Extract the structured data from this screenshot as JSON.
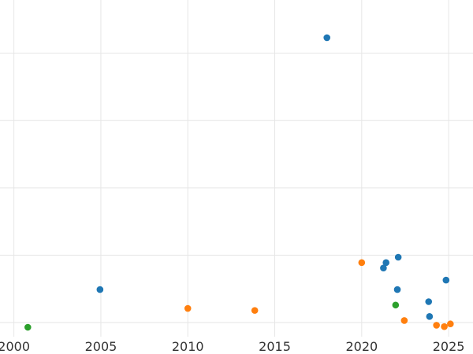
{
  "chart_data": {
    "type": "scatter",
    "xlim": [
      1999.2,
      2026.4
    ],
    "ylim": [
      0,
      10
    ],
    "grid": true,
    "x_ticks": [
      2000,
      2005,
      2010,
      2015,
      2020,
      2025
    ],
    "x_tick_labels": [
      "2000",
      "2005",
      "2010",
      "2015",
      "2020",
      "2025"
    ],
    "y_ticks": [
      0.42,
      2.42,
      4.42,
      6.42,
      8.42,
      10.42
    ],
    "series": [
      {
        "color": "#1f77b4",
        "x": [
          2004.95,
          2018.0,
          2021.25,
          2021.4,
          2022.05,
          2022.1,
          2023.85,
          2023.9,
          2024.85
        ],
        "y": [
          1.4,
          8.88,
          2.04,
          2.2,
          1.4,
          2.36,
          1.04,
          0.6,
          1.68
        ]
      },
      {
        "color": "#ff7f0e",
        "x": [
          2010.0,
          2013.85,
          2020.0,
          2022.45,
          2024.3,
          2024.75,
          2025.1
        ],
        "y": [
          0.84,
          0.78,
          2.2,
          0.48,
          0.34,
          0.3,
          0.38
        ]
      },
      {
        "color": "#2ca02c",
        "x": [
          2000.8,
          2021.95
        ],
        "y": [
          0.28,
          0.94
        ]
      }
    ]
  }
}
